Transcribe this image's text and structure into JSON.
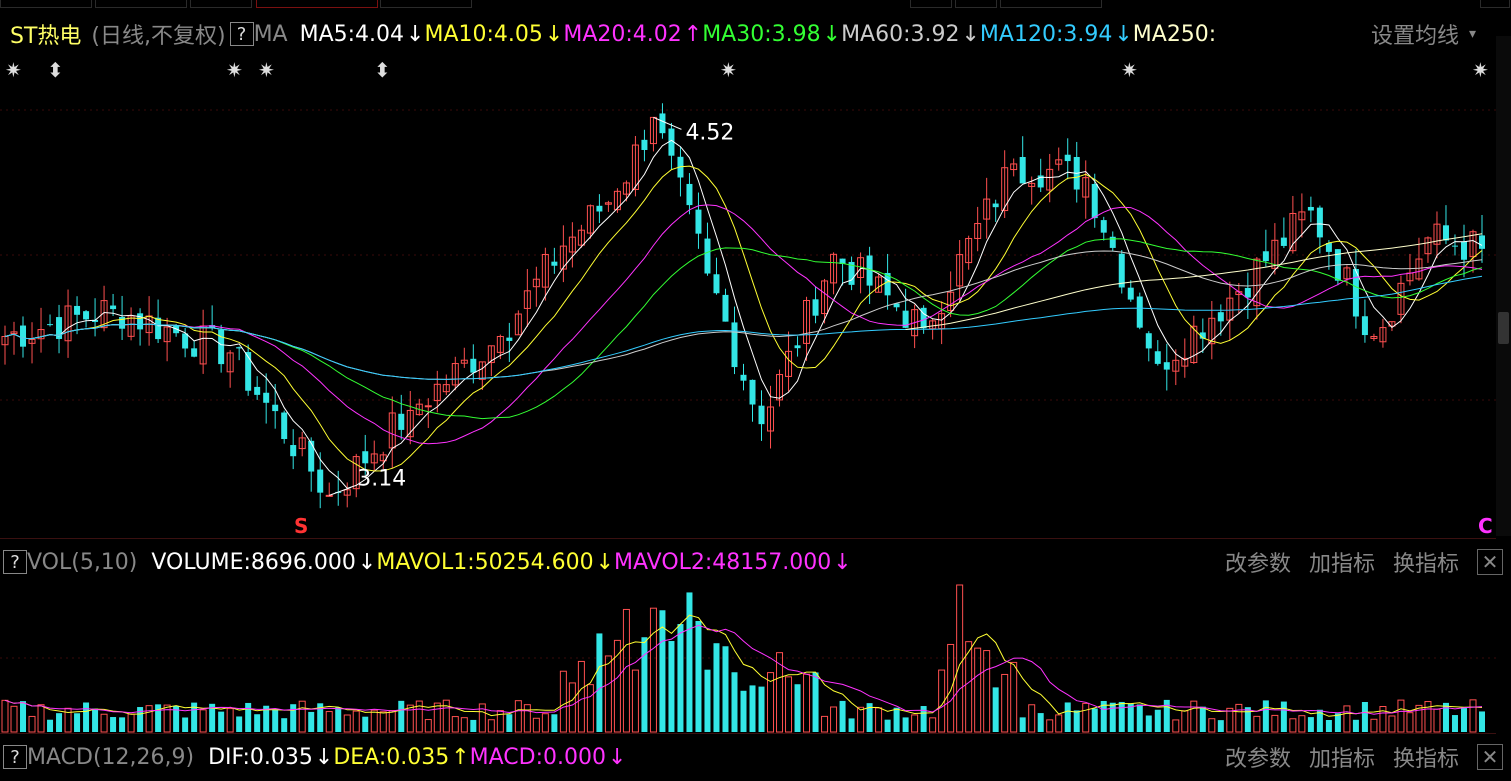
{
  "header": {
    "stock_name": "ST热电",
    "period": "(日线,不复权)",
    "help_icon": "?",
    "ma_label": "MA",
    "mas": [
      {
        "label": "MA5:4.04",
        "dir": "↓",
        "color": "#ffffff"
      },
      {
        "label": "MA10:4.05",
        "dir": "↓",
        "color": "#ffff33"
      },
      {
        "label": "MA20:4.02",
        "dir": "↑",
        "color": "#ff33ff"
      },
      {
        "label": "MA30:3.98",
        "dir": "↓",
        "color": "#33ff33"
      },
      {
        "label": "MA60:3.92",
        "dir": "↓",
        "color": "#cccccc"
      },
      {
        "label": "MA120:3.94",
        "dir": "↓",
        "color": "#33ccff"
      },
      {
        "label": "MA250:",
        "dir": "",
        "color": "#ffffcc"
      }
    ],
    "settings": "设置均线",
    "settings_icon": "chevron-down-icon"
  },
  "markers": {
    "high": "4.52",
    "low": "3.14",
    "s": "S",
    "c": "C"
  },
  "vol_panel": {
    "help_icon": "?",
    "title": "VOL(5,10)",
    "volume": "VOLUME:8696.000",
    "volume_dir": "↓",
    "mavol1": "MAVOL1:50254.600",
    "mavol1_dir": "↓",
    "mavol2": "MAVOL2:48157.000",
    "mavol2_dir": "↓",
    "btn_params": "改参数",
    "btn_add": "加指标",
    "btn_switch": "换指标",
    "close": "✕"
  },
  "macd_panel": {
    "help_icon": "?",
    "title": "MACD(12,26,9)",
    "dif": "DIF:0.035",
    "dif_dir": "↓",
    "dea": "DEA:0.035",
    "dea_dir": "↑",
    "macd": "MACD:0.000",
    "macd_dir": "↓",
    "btn_params": "改参数",
    "btn_add": "加指标",
    "btn_switch": "换指标",
    "close": "✕"
  },
  "colors": {
    "up": "#ff5050",
    "down": "#33e6e6",
    "ma5": "#ffffff",
    "ma10": "#ffff33",
    "ma20": "#ff33ff",
    "ma30": "#33ff33",
    "ma60": "#cccccc",
    "ma120": "#33ccff",
    "ma250": "#ffffcc"
  },
  "chart_data": {
    "type": "candlestick",
    "series_count": 165,
    "key_points": [
      {
        "i": 0,
        "close": 3.72
      },
      {
        "i": 12,
        "close": 3.82
      },
      {
        "i": 25,
        "close": 3.66
      },
      {
        "i": 36,
        "close": 3.14
      },
      {
        "i": 45,
        "close": 3.45
      },
      {
        "i": 55,
        "close": 3.72
      },
      {
        "i": 62,
        "close": 4.05
      },
      {
        "i": 68,
        "close": 4.25
      },
      {
        "i": 72,
        "close": 4.52
      },
      {
        "i": 78,
        "close": 3.95
      },
      {
        "i": 84,
        "close": 3.4
      },
      {
        "i": 92,
        "close": 4.02
      },
      {
        "i": 102,
        "close": 3.75
      },
      {
        "i": 112,
        "close": 4.35
      },
      {
        "i": 120,
        "close": 4.3
      },
      {
        "i": 128,
        "close": 3.62
      },
      {
        "i": 136,
        "close": 3.86
      },
      {
        "i": 145,
        "close": 4.18
      },
      {
        "i": 152,
        "close": 3.72
      },
      {
        "i": 158,
        "close": 4.08
      },
      {
        "i": 164,
        "close": 4.04
      }
    ],
    "price_range": [
      3.05,
      4.62
    ],
    "high": 4.52,
    "low": 3.14
  }
}
